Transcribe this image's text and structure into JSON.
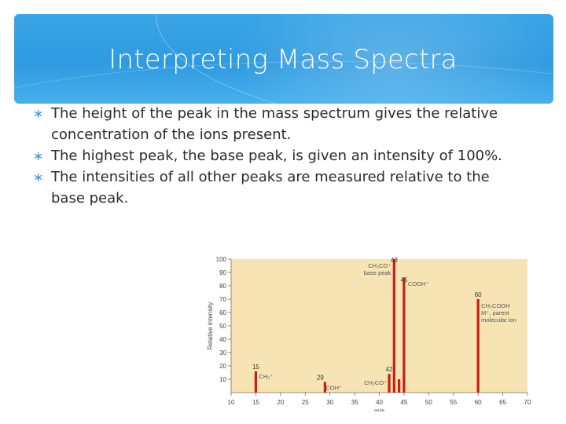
{
  "slide": {
    "title": "Interpreting Mass Spectra",
    "bullets": [
      "The height of the peak in the mass spectrum gives the relative concentration of the ions present.",
      "The highest peak, the base peak, is given an intensity of 100%.",
      "The intensities of all other peaks are measured relative to the base peak."
    ],
    "bullet_marker": "∗",
    "colors": {
      "accent": "#2f9ae0",
      "bullet": "#3a9ad9",
      "plot_bg": "#f7e4b5",
      "peak": "#c81e14"
    }
  },
  "chart_data": {
    "type": "bar",
    "xlabel": "m/e",
    "ylabel": "Relative intensity",
    "xlim": [
      10,
      70
    ],
    "ylim": [
      0,
      100
    ],
    "xticks": [
      10,
      15,
      20,
      25,
      30,
      35,
      40,
      45,
      50,
      55,
      60,
      65,
      70
    ],
    "yticks": [
      10,
      20,
      30,
      40,
      50,
      60,
      70,
      80,
      90,
      100
    ],
    "peaks": [
      {
        "x": 15,
        "y": 16,
        "label": "15",
        "ion": "CH₃⁺"
      },
      {
        "x": 29,
        "y": 8,
        "label": "29",
        "ion": "COH⁺"
      },
      {
        "x": 42,
        "y": 14,
        "label": "42",
        "ion": "CH₂CO⁺"
      },
      {
        "x": 43,
        "y": 100,
        "label": "43",
        "ion": "CH₃CO⁺ base peak"
      },
      {
        "x": 44,
        "y": 10,
        "label": "",
        "ion": ""
      },
      {
        "x": 45,
        "y": 86,
        "label": "45",
        "ion": "COOH⁺"
      },
      {
        "x": 60,
        "y": 70,
        "label": "60",
        "ion": "CH₃COOH M⁺, parent molecular ion"
      }
    ],
    "annotations": {
      "p15": [
        "CH₃⁺"
      ],
      "p29": [
        "COH⁺"
      ],
      "p42": [
        "CH₂CO⁺"
      ],
      "p43": [
        "CH₃CO⁺",
        "base peak"
      ],
      "p45": [
        "COOH⁺"
      ],
      "p60": [
        "CH₃COOH",
        "M⁺, parent",
        "molecular ion"
      ]
    }
  }
}
